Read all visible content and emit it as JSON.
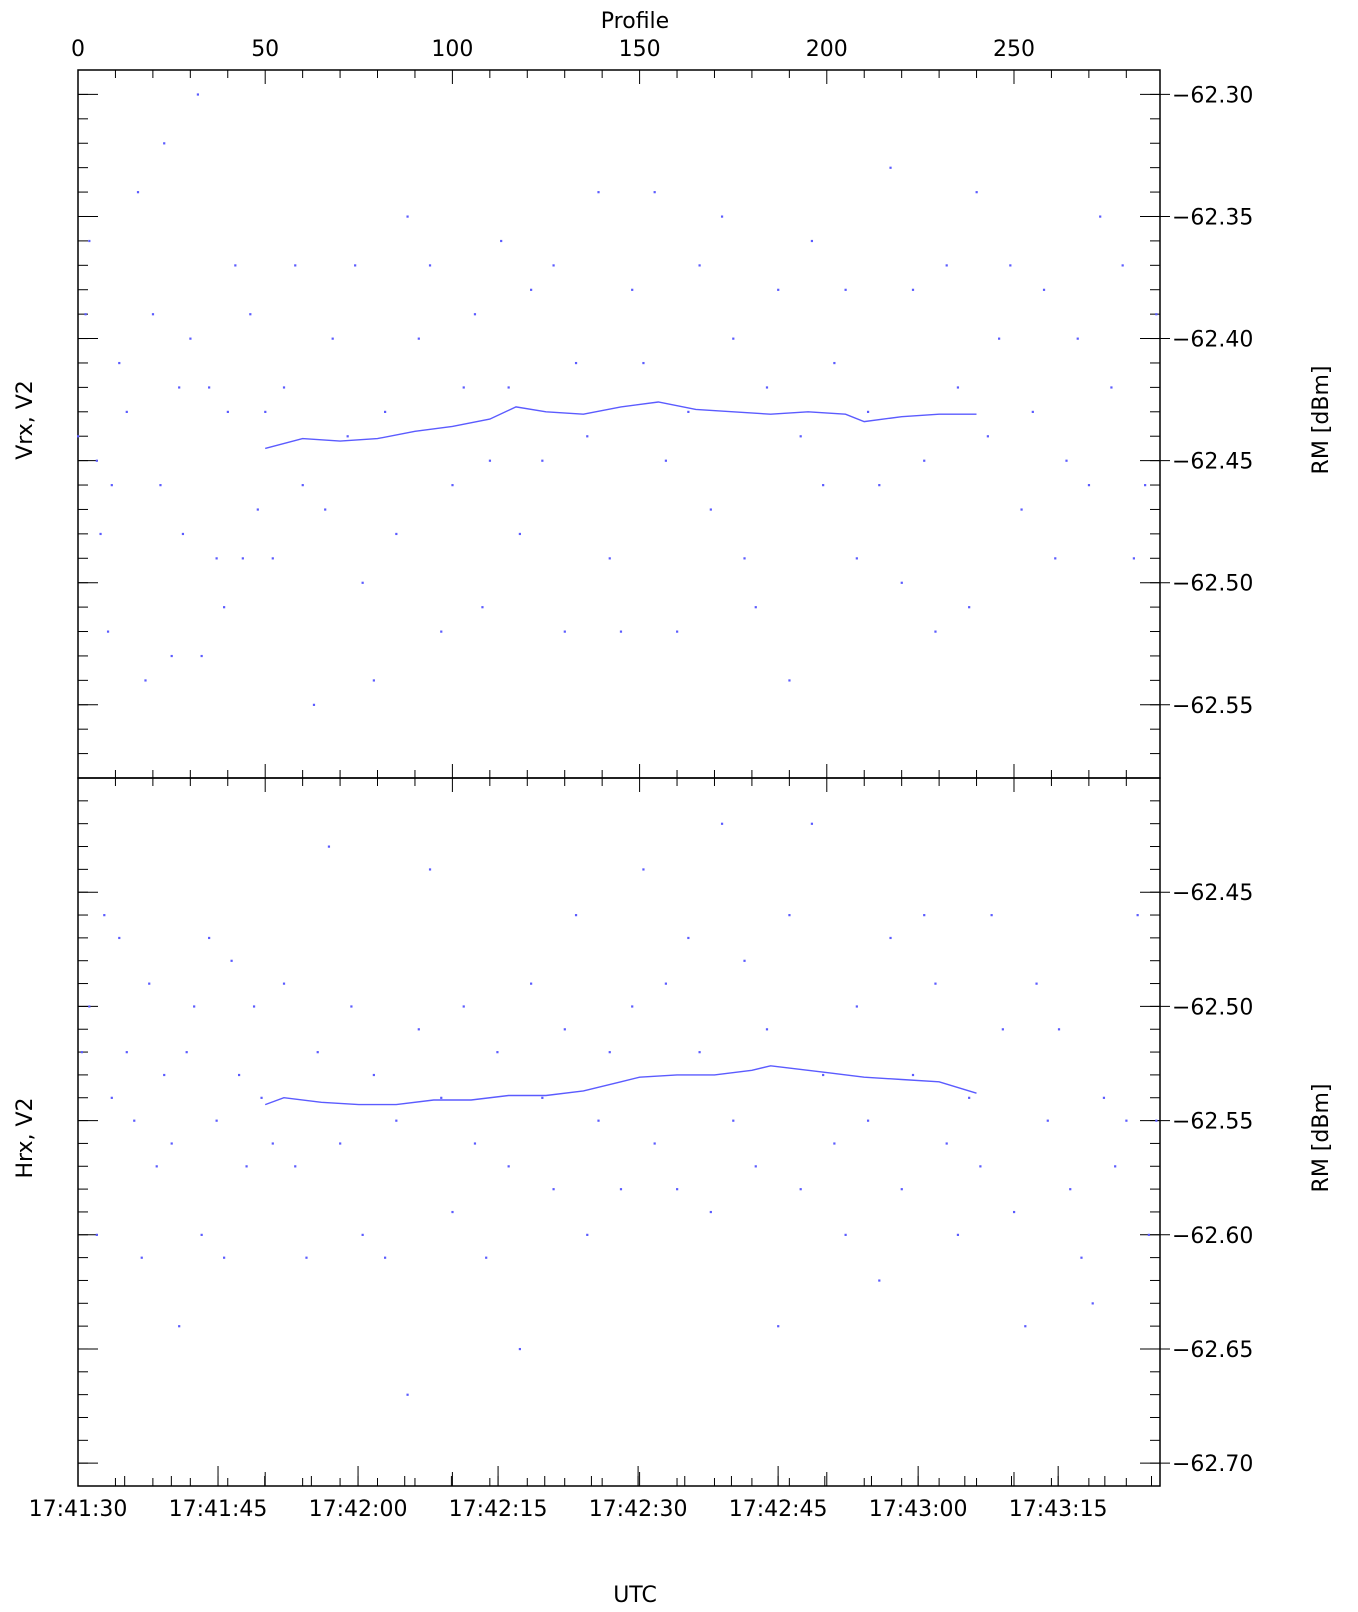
{
  "top_axis_label": "Profile",
  "x_axis_label": "UTC",
  "colors": {
    "series": "#5b5bff",
    "axes": "#000000"
  },
  "chart_data": [
    {
      "type": "scatter",
      "panel": "top",
      "ylabel_left": "Vrx, V2",
      "ylabel_right": "RM [dBm]",
      "xlabel": "UTC",
      "secondary_xlabel": "Profile",
      "x_range_profile": [
        0,
        289
      ],
      "ylim": [
        -62.58,
        -62.29
      ],
      "yticks": [
        "-62.30",
        "-62.35",
        "-62.40",
        "-62.45",
        "-62.50",
        "-62.55"
      ],
      "top_ticks": [
        "0",
        "50",
        "100",
        "150",
        "200",
        "250"
      ],
      "series": [
        {
          "kind": "points",
          "x": [
            0,
            2,
            3,
            5,
            6,
            8,
            9,
            11,
            13,
            16,
            18,
            20,
            22,
            23,
            25,
            27,
            28,
            30,
            32,
            33,
            35,
            37,
            39,
            40,
            42,
            44,
            46,
            48,
            50,
            52,
            55,
            58,
            60,
            63,
            66,
            68,
            72,
            74,
            76,
            79,
            82,
            85,
            88,
            91,
            94,
            97,
            100,
            103,
            106,
            108,
            110,
            113,
            115,
            118,
            121,
            124,
            127,
            130,
            133,
            136,
            139,
            142,
            145,
            148,
            151,
            154,
            157,
            160,
            163,
            166,
            169,
            172,
            175,
            178,
            181,
            184,
            187,
            190,
            193,
            196,
            199,
            202,
            205,
            208,
            211,
            214,
            217,
            220,
            223,
            226,
            229,
            232,
            235,
            238,
            240,
            243,
            246,
            249,
            252,
            255,
            258,
            261,
            264,
            267,
            270,
            273,
            276,
            279,
            282,
            285,
            288
          ],
          "y": [
            -62.44,
            -62.39,
            -62.36,
            -62.45,
            -62.48,
            -62.52,
            -62.46,
            -62.41,
            -62.43,
            -62.34,
            -62.54,
            -62.39,
            -62.46,
            -62.32,
            -62.53,
            -62.42,
            -62.48,
            -62.4,
            -62.3,
            -62.53,
            -62.42,
            -62.49,
            -62.51,
            -62.43,
            -62.37,
            -62.49,
            -62.39,
            -62.47,
            -62.43,
            -62.49,
            -62.42,
            -62.37,
            -62.46,
            -62.55,
            -62.47,
            -62.4,
            -62.44,
            -62.37,
            -62.5,
            -62.54,
            -62.43,
            -62.48,
            -62.35,
            -62.4,
            -62.37,
            -62.52,
            -62.46,
            -62.42,
            -62.39,
            -62.51,
            -62.45,
            -62.36,
            -62.42,
            -62.48,
            -62.38,
            -62.45,
            -62.37,
            -62.52,
            -62.41,
            -62.44,
            -62.34,
            -62.49,
            -62.52,
            -62.38,
            -62.41,
            -62.34,
            -62.45,
            -62.52,
            -62.43,
            -62.37,
            -62.47,
            -62.35,
            -62.4,
            -62.49,
            -62.51,
            -62.42,
            -62.38,
            -62.54,
            -62.44,
            -62.36,
            -62.46,
            -62.41,
            -62.38,
            -62.49,
            -62.43,
            -62.46,
            -62.33,
            -62.5,
            -62.38,
            -62.45,
            -62.52,
            -62.37,
            -62.42,
            -62.51,
            -62.34,
            -62.44,
            -62.4,
            -62.37,
            -62.47,
            -62.43,
            -62.38,
            -62.49,
            -62.45,
            -62.4,
            -62.46,
            -62.35,
            -62.42,
            -62.37,
            -62.49,
            -62.46,
            -62.39
          ]
        },
        {
          "kind": "running-mean",
          "x": [
            50,
            60,
            70,
            80,
            90,
            100,
            110,
            117,
            125,
            135,
            145,
            155,
            165,
            175,
            185,
            195,
            205,
            210,
            220,
            230,
            240
          ],
          "y": [
            -62.445,
            -62.441,
            -62.442,
            -62.441,
            -62.438,
            -62.436,
            -62.433,
            -62.428,
            -62.43,
            -62.431,
            -62.428,
            -62.426,
            -62.429,
            -62.43,
            -62.431,
            -62.43,
            -62.431,
            -62.434,
            -62.432,
            -62.431,
            -62.431
          ]
        }
      ]
    },
    {
      "type": "scatter",
      "panel": "bottom",
      "ylabel_left": "Hrx, V2",
      "ylabel_right": "RM [dBm]",
      "xlabel": "UTC",
      "ylim": [
        -62.71,
        -62.4
      ],
      "yticks": [
        "-62.45",
        "-62.50",
        "-62.55",
        "-62.60",
        "-62.65",
        "-62.70"
      ],
      "xticks": [
        "17:41:30",
        "17:41:45",
        "17:42:00",
        "17:42:15",
        "17:42:30",
        "17:42:45",
        "17:43:00",
        "17:43:15"
      ],
      "series": [
        {
          "kind": "points",
          "x": [
            1,
            3,
            5,
            7,
            9,
            11,
            13,
            15,
            17,
            19,
            21,
            23,
            25,
            27,
            29,
            31,
            33,
            35,
            37,
            39,
            41,
            43,
            45,
            47,
            49,
            52,
            55,
            58,
            61,
            64,
            67,
            70,
            73,
            76,
            79,
            82,
            85,
            88,
            91,
            94,
            97,
            100,
            103,
            106,
            109,
            112,
            115,
            118,
            121,
            124,
            127,
            130,
            133,
            136,
            139,
            142,
            145,
            148,
            151,
            154,
            157,
            160,
            163,
            166,
            169,
            172,
            175,
            178,
            181,
            184,
            187,
            190,
            193,
            196,
            199,
            202,
            205,
            208,
            211,
            214,
            217,
            220,
            223,
            226,
            229,
            232,
            235,
            238,
            241,
            244,
            247,
            250,
            253,
            256,
            259,
            262,
            265,
            268,
            271,
            274,
            277,
            280,
            283,
            286,
            288
          ],
          "y": [
            -62.52,
            -62.5,
            -62.6,
            -62.46,
            -62.54,
            -62.47,
            -62.52,
            -62.55,
            -62.61,
            -62.49,
            -62.57,
            -62.53,
            -62.56,
            -62.64,
            -62.52,
            -62.5,
            -62.6,
            -62.47,
            -62.55,
            -62.61,
            -62.48,
            -62.53,
            -62.57,
            -62.5,
            -62.54,
            -62.56,
            -62.49,
            -62.57,
            -62.61,
            -62.52,
            -62.43,
            -62.56,
            -62.5,
            -62.6,
            -62.53,
            -62.61,
            -62.55,
            -62.67,
            -62.51,
            -62.44,
            -62.54,
            -62.59,
            -62.5,
            -62.56,
            -62.61,
            -62.52,
            -62.57,
            -62.65,
            -62.49,
            -62.54,
            -62.58,
            -62.51,
            -62.46,
            -62.6,
            -62.55,
            -62.52,
            -62.58,
            -62.5,
            -62.44,
            -62.56,
            -62.49,
            -62.58,
            -62.47,
            -62.52,
            -62.59,
            -62.42,
            -62.55,
            -62.48,
            -62.57,
            -62.51,
            -62.64,
            -62.46,
            -62.58,
            -62.42,
            -62.53,
            -62.56,
            -62.6,
            -62.5,
            -62.55,
            -62.62,
            -62.47,
            -62.58,
            -62.53,
            -62.46,
            -62.49,
            -62.56,
            -62.6,
            -62.54,
            -62.57,
            -62.46,
            -62.51,
            -62.59,
            -62.64,
            -62.49,
            -62.55,
            -62.51,
            -62.58,
            -62.61,
            -62.63,
            -62.54,
            -62.57,
            -62.55,
            -62.46,
            -62.6,
            -62.55
          ]
        },
        {
          "kind": "running-mean",
          "x": [
            50,
            55,
            65,
            75,
            85,
            95,
            105,
            115,
            125,
            135,
            145,
            150,
            160,
            170,
            180,
            185,
            190,
            200,
            210,
            220,
            230,
            240
          ],
          "y": [
            -62.543,
            -62.54,
            -62.542,
            -62.543,
            -62.543,
            -62.541,
            -62.541,
            -62.539,
            -62.539,
            -62.537,
            -62.533,
            -62.531,
            -62.53,
            -62.53,
            -62.528,
            -62.526,
            -62.527,
            -62.529,
            -62.531,
            -62.532,
            -62.533,
            -62.538
          ]
        }
      ]
    }
  ]
}
